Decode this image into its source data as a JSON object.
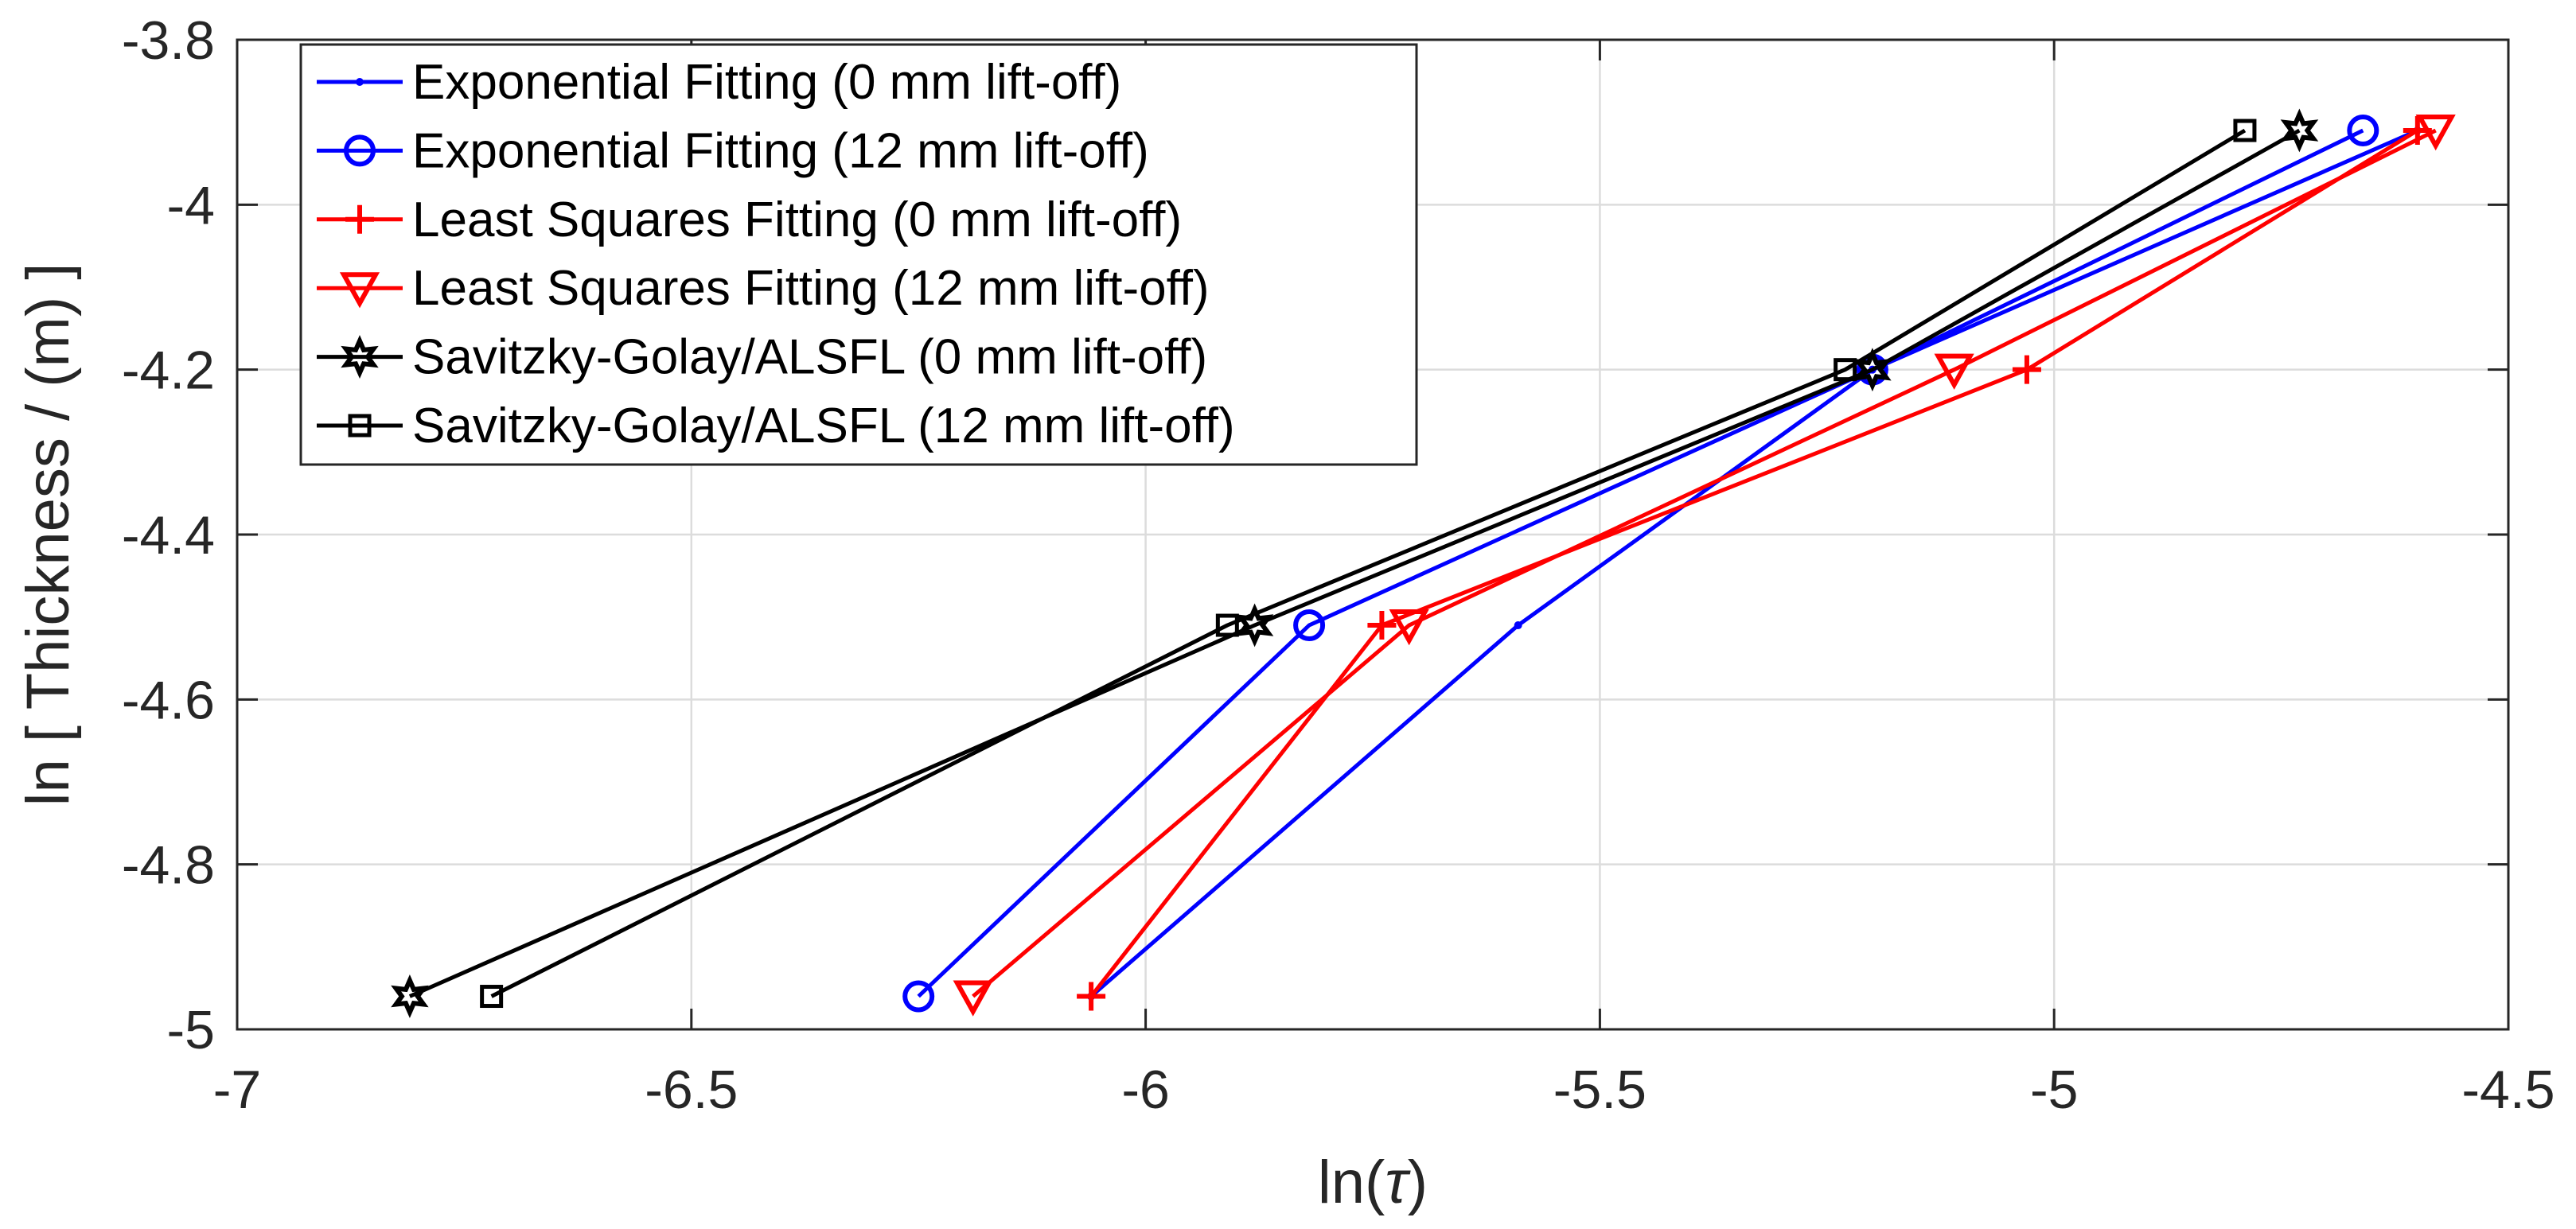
{
  "chart_data": {
    "type": "line",
    "title": "",
    "xlabel_prefix": "ln(",
    "xlabel_symbol": "τ",
    "xlabel_suffix": ")",
    "ylabel": "ln [ Thickness / (m) ]",
    "xlim": [
      -7,
      -4.5
    ],
    "ylim": [
      -5,
      -3.8
    ],
    "grid": true,
    "legend_position": "top-left",
    "x_ticks": [
      -7,
      -6.5,
      -6,
      -5.5,
      -5,
      -4.5
    ],
    "x_tick_labels": [
      "-7",
      "-6.5",
      "-6",
      "-5.5",
      "-5",
      "-4.5"
    ],
    "y_ticks": [
      -3.8,
      -4,
      -4.2,
      -4.4,
      -4.6,
      -4.8,
      -5
    ],
    "y_tick_labels": [
      "-3.8",
      "-4",
      "-4.2",
      "-4.4",
      "-4.6",
      "-4.8",
      "-5"
    ],
    "series": [
      {
        "name": "Exponential Fitting (0 mm lift-off)",
        "color": "#0000ff",
        "marker": "dot",
        "points": [
          [
            -6.06,
            -4.96
          ],
          [
            -5.59,
            -4.51
          ],
          [
            -5.2,
            -4.2
          ],
          [
            -4.6,
            -3.91
          ]
        ]
      },
      {
        "name": "Exponential Fitting (12 mm lift-off)",
        "color": "#0000ff",
        "marker": "circle",
        "points": [
          [
            -6.25,
            -4.96
          ],
          [
            -5.82,
            -4.51
          ],
          [
            -5.2,
            -4.2
          ],
          [
            -4.66,
            -3.91
          ]
        ]
      },
      {
        "name": "Least Squares Fitting (0 mm lift-off)",
        "color": "#ff0000",
        "marker": "plus",
        "points": [
          [
            -6.06,
            -4.96
          ],
          [
            -5.74,
            -4.51
          ],
          [
            -5.03,
            -4.2
          ],
          [
            -4.6,
            -3.91
          ]
        ]
      },
      {
        "name": "Least Squares Fitting (12 mm lift-off)",
        "color": "#ff0000",
        "marker": "triangle-down",
        "points": [
          [
            -6.19,
            -4.96
          ],
          [
            -5.71,
            -4.51
          ],
          [
            -5.11,
            -4.2
          ],
          [
            -4.58,
            -3.91
          ]
        ]
      },
      {
        "name": "Savitzky-Golay/ALSFL (0 mm lift-off)",
        "color": "#000000",
        "marker": "hexagram",
        "points": [
          [
            -6.81,
            -4.96
          ],
          [
            -5.88,
            -4.51
          ],
          [
            -5.2,
            -4.2
          ],
          [
            -4.73,
            -3.91
          ]
        ]
      },
      {
        "name": "Savitzky-Golay/ALSFL (12 mm lift-off)",
        "color": "#000000",
        "marker": "square",
        "points": [
          [
            -6.72,
            -4.96
          ],
          [
            -5.91,
            -4.51
          ],
          [
            -5.23,
            -4.2
          ],
          [
            -4.79,
            -3.91
          ]
        ]
      }
    ]
  }
}
